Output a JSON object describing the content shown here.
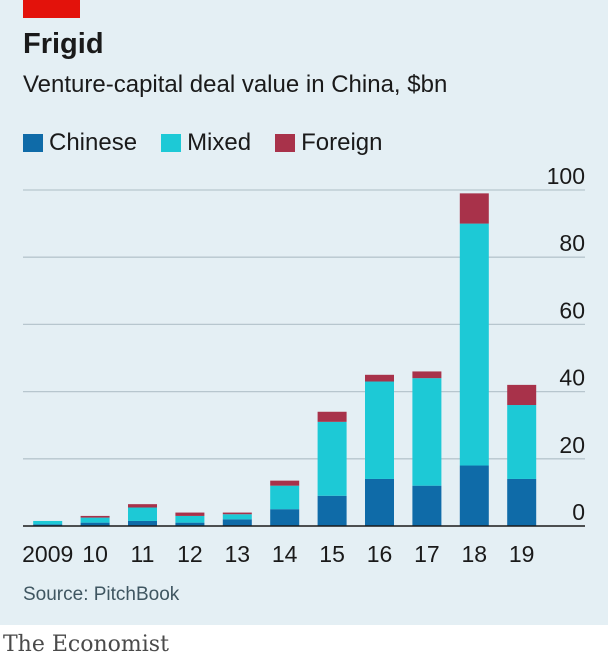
{
  "header": {
    "title": "Frigid",
    "subtitle": "Venture-capital deal value in China, $bn"
  },
  "legend": [
    {
      "label": "Chinese",
      "color": "#0f6ba8"
    },
    {
      "label": "Mixed",
      "color": "#1dc9d6"
    },
    {
      "label": "Foreign",
      "color": "#a8324a"
    }
  ],
  "source": "Source: PitchBook",
  "footer": "The Economist",
  "colors": {
    "accent": "#e3120b",
    "panel": "#e4eff4",
    "grid": "#b7c6ce"
  },
  "chart_data": {
    "type": "bar",
    "stacked": true,
    "categories": [
      "2009",
      "10",
      "11",
      "12",
      "13",
      "14",
      "15",
      "16",
      "17",
      "18",
      "19"
    ],
    "series": [
      {
        "name": "Chinese",
        "values": [
          0.5,
          1,
          1.5,
          1,
          2,
          5,
          9,
          14,
          12,
          18,
          14
        ]
      },
      {
        "name": "Mixed",
        "values": [
          1,
          1.5,
          4,
          2,
          1.5,
          7,
          22,
          29,
          32,
          72,
          22
        ]
      },
      {
        "name": "Foreign",
        "values": [
          0,
          0.5,
          1,
          1,
          0.5,
          1.5,
          3,
          2,
          2,
          9,
          6
        ]
      }
    ],
    "ylim": [
      0,
      100
    ],
    "yticks": [
      0,
      20,
      40,
      60,
      80,
      100
    ],
    "xlabel": "",
    "ylabel": "",
    "grid": true,
    "axis_side": "right",
    "legend_position": "top-left"
  }
}
